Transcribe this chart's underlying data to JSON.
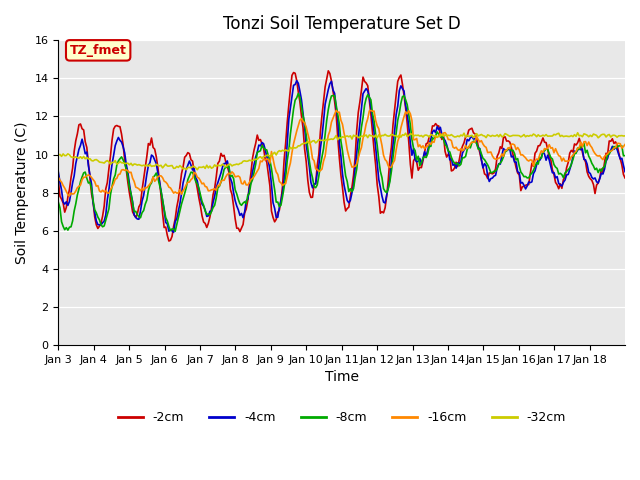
{
  "title": "Tonzi Soil Temperature Set D",
  "xlabel": "Time",
  "ylabel": "Soil Temperature (C)",
  "ylim": [
    0,
    16
  ],
  "yticks": [
    0,
    2,
    4,
    6,
    8,
    10,
    12,
    14,
    16
  ],
  "bg_color": "#e8e8e8",
  "annotation_text": "TZ_fmet",
  "annotation_bg": "#ffffcc",
  "annotation_border": "#cc0000",
  "colors": {
    "-2cm": "#cc0000",
    "-4cm": "#0000cc",
    "-8cm": "#00aa00",
    "-16cm": "#ff8800",
    "-32cm": "#cccc00"
  },
  "n_points": 360,
  "x_tick_labels": [
    "Jan 3",
    "Jan 4",
    "Jan 5",
    "Jan 6",
    "Jan 7",
    "Jan 8",
    "Jan 9",
    "Jan 10",
    "Jan 11",
    "Jan 12",
    "Jan 13",
    "Jan 14",
    "Jan 15",
    "Jan 16",
    "Jan 17",
    "Jan 18"
  ]
}
